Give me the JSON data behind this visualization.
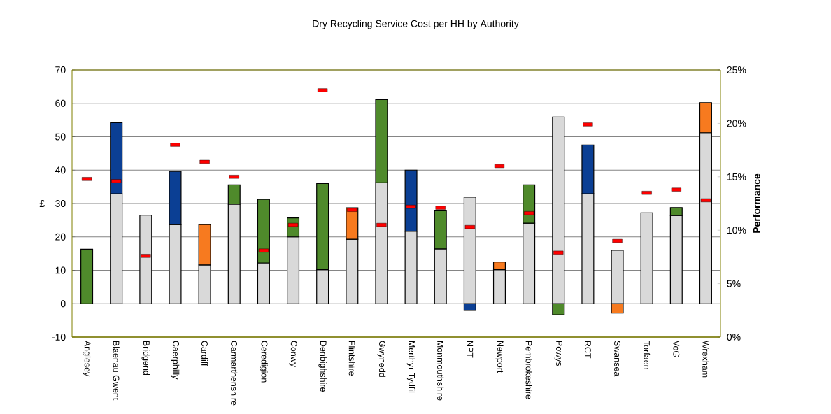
{
  "chart_data": {
    "type": "bar",
    "title": "Dry Recycling Service Cost per HH by Authority",
    "ylabel": "£",
    "y2label": "Performance",
    "categories": [
      "Anglesey",
      "Blaenau Gwent",
      "Bridgend",
      "Caerphilly",
      "Cardiff",
      "Carmarthenshire",
      "Ceredigion",
      "Conwy",
      "Denbighshire",
      "Flintshire",
      "Gwynedd",
      "Merthyr Tydfil",
      "Monmouthshire",
      "NPT",
      "Newport",
      "Pembrokeshire",
      "Powys",
      "RCT",
      "Swansea",
      "Torfaen",
      "VoG",
      "Wrexham"
    ],
    "stacked": true,
    "grid": "y",
    "ylim": [
      -10,
      70
    ],
    "yticks": [
      -10,
      0,
      10,
      20,
      30,
      40,
      50,
      60,
      70
    ],
    "y2lim": [
      0,
      25
    ],
    "y2ticks": [
      {
        "value": 0,
        "label": "0%"
      },
      {
        "value": 5,
        "label": "5%"
      },
      {
        "value": 10,
        "label": "10%"
      },
      {
        "value": 15,
        "label": "15%"
      },
      {
        "value": 20,
        "label": "20%"
      },
      {
        "value": 25,
        "label": "25%"
      }
    ],
    "series": [
      {
        "color": "#d9d9d9",
        "values": [
          null,
          32.9,
          26.5,
          23.7,
          11.6,
          29.8,
          12.2,
          20.0,
          10.2,
          19.3,
          36.2,
          21.7,
          16.4,
          31.9,
          10.2,
          24.1,
          55.9,
          32.9,
          16.0,
          27.2,
          26.4,
          51.2
        ]
      },
      {
        "color": "#4f8a2b",
        "values": [
          16.3,
          null,
          null,
          null,
          null,
          5.8,
          19.0,
          5.7,
          25.8,
          null,
          24.9,
          null,
          11.4,
          null,
          null,
          11.5,
          -3.3,
          null,
          null,
          null,
          2.4,
          null
        ]
      },
      {
        "color": "#0b3f94",
        "values": [
          null,
          21.3,
          null,
          15.9,
          null,
          null,
          null,
          null,
          null,
          null,
          null,
          18.3,
          null,
          -2.0,
          null,
          null,
          null,
          14.6,
          null,
          null,
          null,
          null
        ]
      },
      {
        "color": "#f77a1f",
        "values": [
          null,
          null,
          null,
          null,
          12.1,
          null,
          null,
          null,
          null,
          9.4,
          null,
          null,
          null,
          null,
          2.3,
          null,
          null,
          null,
          -2.8,
          null,
          null,
          9.0
        ]
      },
      {
        "type": "scatter",
        "axis": "y2",
        "color": "#ff0000",
        "values": [
          14.8,
          14.6,
          7.6,
          18.0,
          16.4,
          15.0,
          8.1,
          10.5,
          23.1,
          11.9,
          10.5,
          12.2,
          12.1,
          10.3,
          16.0,
          11.6,
          7.9,
          19.9,
          9.0,
          13.5,
          13.8,
          12.8
        ]
      }
    ]
  }
}
